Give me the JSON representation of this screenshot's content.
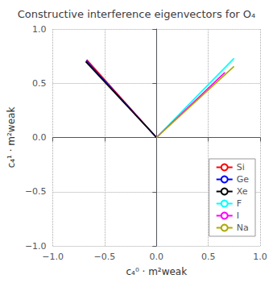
{
  "chart_data": {
    "type": "line",
    "title": "Constructive interference eigenvectors for O₄",
    "xlabel": "c₄⁰ · m²weak",
    "ylabel": "c₄¹ · m²weak",
    "xlim": [
      -1.0,
      1.0
    ],
    "ylim": [
      -1.0,
      1.0
    ],
    "xticks": [
      {
        "value": -1.0,
        "label": "−1.0"
      },
      {
        "value": -0.5,
        "label": "−0.5"
      },
      {
        "value": 0.0,
        "label": "0.0"
      },
      {
        "value": 0.5,
        "label": "0.5"
      },
      {
        "value": 1.0,
        "label": "1.0"
      }
    ],
    "yticks": [
      {
        "value": -1.0,
        "label": "−1.0"
      },
      {
        "value": -0.5,
        "label": "−0.5"
      },
      {
        "value": 0.0,
        "label": "0.0"
      },
      {
        "value": 0.5,
        "label": "0.5"
      },
      {
        "value": 1.0,
        "label": "1.0"
      }
    ],
    "series": [
      {
        "name": "Si",
        "color": "#ff0000",
        "x": [
          -0.673,
          0.0
        ],
        "values": [
          0.718,
          0.0
        ]
      },
      {
        "name": "Ge",
        "color": "#0000ff",
        "x": [
          -0.678,
          0.0
        ],
        "values": [
          0.708,
          0.0
        ]
      },
      {
        "name": "Xe",
        "color": "#000000",
        "x": [
          -0.683,
          0.0
        ],
        "values": [
          0.7,
          0.0
        ]
      },
      {
        "name": "F",
        "color": "#00ffff",
        "x": [
          0.0,
          0.748
        ],
        "values": [
          0.0,
          0.73
        ]
      },
      {
        "name": "I",
        "color": "#ff00ff",
        "x": [
          0.0,
          0.66
        ],
        "values": [
          0.0,
          0.6
        ]
      },
      {
        "name": "Na",
        "color": "#aaaa00",
        "x": [
          0.0,
          0.748
        ],
        "values": [
          0.0,
          0.655
        ]
      }
    ],
    "legend": "lower right",
    "grid": true
  }
}
